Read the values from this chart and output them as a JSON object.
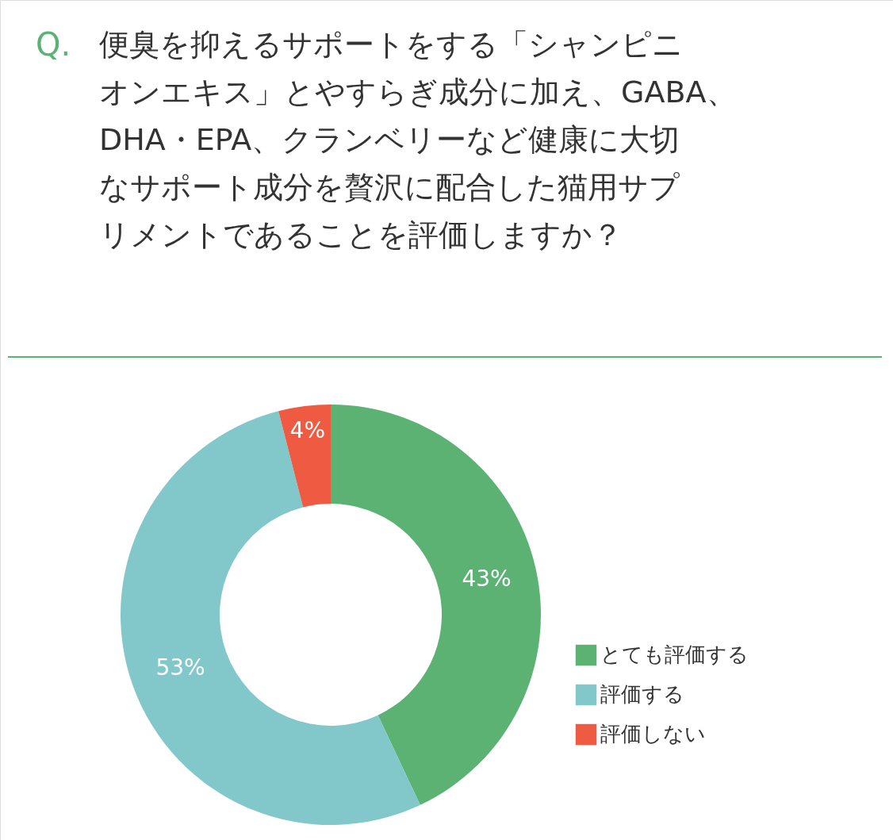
{
  "chart_data": {
    "type": "donut",
    "title": "便臭を抑えるサポートをする「シャンピニオンエキス」とやすらぎ成分に加え、GABA、DHA・EPA、クランベリーなど健康に大切なサポート成分を贅沢に配合した猫用サプリメントであることを評価しますか？",
    "annotations": [
      "Q."
    ],
    "categories": [
      "とても評価する",
      "評価する",
      "評価しない"
    ],
    "values": [
      43,
      53,
      4
    ],
    "colors": [
      "#5bb273",
      "#82c8ca",
      "#ef5a42"
    ],
    "value_labels": [
      "43%",
      "53%",
      "4%"
    ],
    "legend": "right"
  }
}
